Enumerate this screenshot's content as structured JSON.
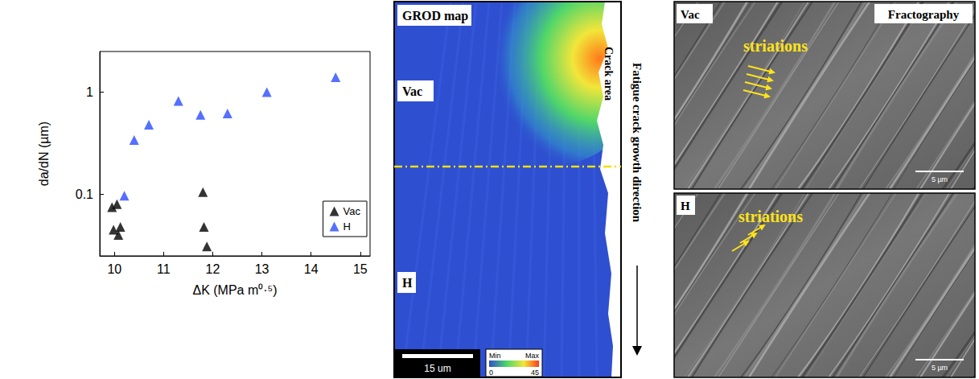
{
  "chart_data": {
    "type": "scatter",
    "x_label": "ΔK (MPa m⁰·⁵)",
    "y_label": "da/dN (µm)",
    "log": "y",
    "xlim": [
      9.7,
      15.2
    ],
    "xticks": [
      10,
      11,
      12,
      13,
      14,
      15
    ],
    "ylim": [
      0.025,
      2.5
    ],
    "yticks": [
      0.1,
      1
    ],
    "grid": false,
    "legend": "bottom-right",
    "marker": "triangle",
    "series": [
      {
        "name": "Vac",
        "color": "#000000",
        "x": [
          9.95,
          9.98,
          10.05,
          10.08,
          10.12,
          11.8,
          11.82,
          11.88
        ],
        "values": [
          0.075,
          0.045,
          0.08,
          0.04,
          0.048,
          0.105,
          0.048,
          0.031
        ]
      },
      {
        "name": "H",
        "color": "#2a4bff",
        "x": [
          10.2,
          10.4,
          10.7,
          11.3,
          11.75,
          12.3,
          13.1,
          14.5
        ],
        "values": [
          0.097,
          0.34,
          0.48,
          0.82,
          0.6,
          0.62,
          1.0,
          1.4
        ]
      }
    ]
  },
  "grod_map": {
    "title": "GROD map",
    "labels": [
      "Vac",
      "H"
    ],
    "crack_label": "Crack area",
    "scale_bar": "15 um",
    "colorbar": {
      "min_label": "Min",
      "max_label": "Max",
      "range": [
        0,
        45
      ]
    }
  },
  "direction_label": "Fatigue crack growth direction",
  "fractography": {
    "title": "Fractography",
    "panels": [
      {
        "label": "Vac",
        "annotation": "striations",
        "scale_bar": "5 µm"
      },
      {
        "label": "H",
        "annotation": "striations",
        "scale_bar": "5 µm"
      }
    ]
  }
}
